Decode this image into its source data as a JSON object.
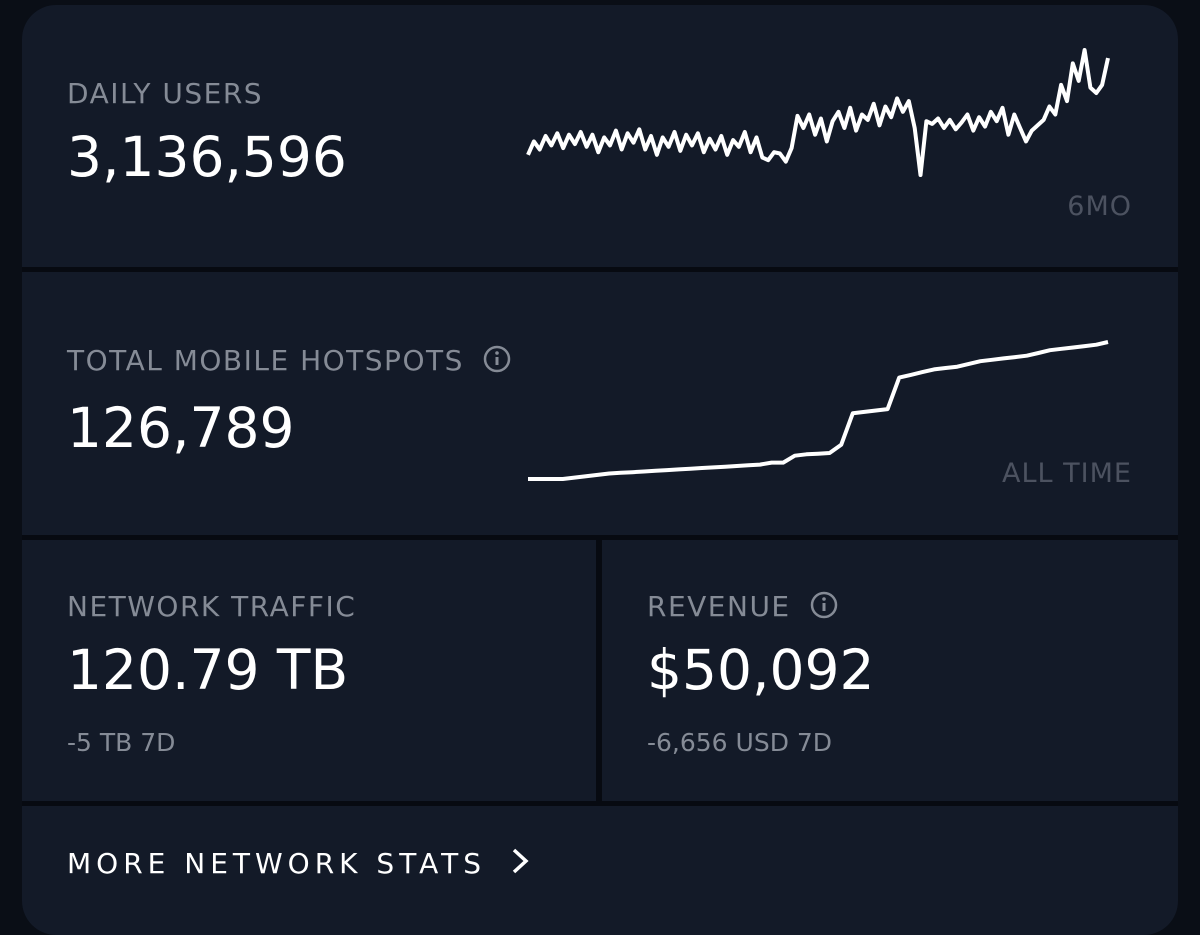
{
  "panels": [
    {
      "label": "DAILY USERS",
      "value": "3,136,596",
      "range": "6MO",
      "sparkline": [
        20,
        30,
        24,
        34,
        27,
        36,
        25,
        35,
        28,
        37,
        26,
        35,
        22,
        33,
        27,
        38,
        24,
        36,
        29,
        39,
        24,
        34,
        20,
        33,
        26,
        37,
        23,
        35,
        27,
        36,
        22,
        32,
        24,
        34,
        20,
        31,
        26,
        37,
        22,
        33,
        18,
        16,
        22,
        21,
        15,
        25,
        49,
        40,
        50,
        35,
        47,
        30,
        45,
        52,
        40,
        55,
        38,
        50,
        46,
        58,
        42,
        56,
        48,
        62,
        52,
        60,
        40,
        5,
        45,
        43,
        47,
        40,
        46,
        39,
        44,
        50,
        38,
        48,
        41,
        52,
        45,
        55,
        35,
        50,
        40,
        30,
        38,
        42,
        46,
        56,
        50,
        72,
        60,
        88,
        75,
        98,
        70,
        66,
        72,
        92
      ]
    },
    {
      "label": "TOTAL MOBILE HOTSPOTS",
      "value": "126,789",
      "range": "ALL TIME",
      "sparkline": [
        0,
        0,
        0,
        0,
        1,
        2,
        3,
        4,
        4.5,
        5,
        5.5,
        6,
        6.5,
        7,
        7.5,
        8,
        8.5,
        9,
        9.5,
        10,
        10.5,
        12,
        12,
        17,
        18,
        18.5,
        19,
        25,
        48,
        49,
        50,
        51,
        74,
        76,
        78,
        80,
        81,
        82,
        84,
        86,
        87,
        88,
        89,
        90,
        92,
        94,
        95,
        96,
        97,
        98,
        100
      ]
    }
  ],
  "tiles": [
    {
      "label": "NETWORK TRAFFIC",
      "value": "120.79 TB",
      "change": "-5 TB 7D"
    },
    {
      "label": "REVENUE",
      "value": "$50,092",
      "change": "-6,656 USD 7D"
    }
  ],
  "footer": {
    "link": "MORE NETWORK STATS"
  }
}
